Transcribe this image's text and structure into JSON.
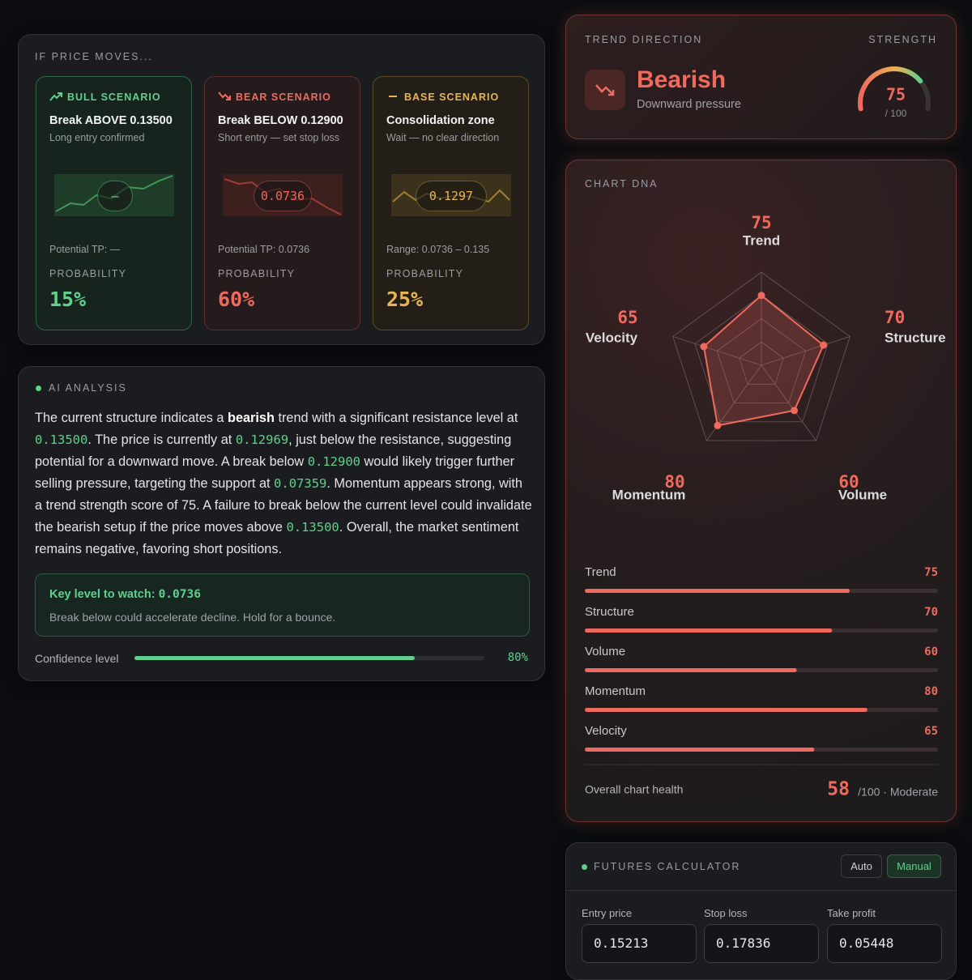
{
  "scenarios": {
    "title": "IF PRICE MOVES...",
    "cards": [
      {
        "label": "BULL SCENARIO",
        "title": "Break ABOVE 0.13500",
        "subtitle": "Long entry confirmed",
        "pill": "–",
        "note": "Potential TP: —",
        "prob_label": "PROBABILITY",
        "prob": "15%"
      },
      {
        "label": "BEAR SCENARIO",
        "title": "Break BELOW 0.12900",
        "subtitle": "Short entry — set stop loss",
        "pill": "0.0736",
        "note": "Potential TP: 0.0736",
        "prob_label": "PROBABILITY",
        "prob": "60%"
      },
      {
        "label": "BASE SCENARIO",
        "title": "Consolidation zone",
        "subtitle": "Wait — no clear direction",
        "pill": "0.1297",
        "note": "Range: 0.0736 – 0.135",
        "prob_label": "PROBABILITY",
        "prob": "25%"
      }
    ]
  },
  "analysis": {
    "title": "AI ANALYSIS",
    "paragraph": [
      "The current structure indicates a ",
      {
        "bold": "bearish"
      },
      " trend with a significant resistance level at ",
      {
        "code": "0.13500"
      },
      ". The price is currently at ",
      {
        "code": "0.12969"
      },
      ", just below the resistance, suggesting potential for a downward move. A break below ",
      {
        "code": "0.12900"
      },
      " would likely trigger further selling pressure, targeting the support at ",
      {
        "code": "0.07359"
      },
      ". Momentum appears strong, with a trend strength score of 75. A failure to break below the current level could invalidate the bearish setup if the price moves above ",
      {
        "code": "0.13500"
      },
      ". Overall, the market sentiment remains negative, favoring short positions."
    ],
    "key_level": {
      "label": "Key level to watch: ",
      "value": "0.0736",
      "text": "Break below could accelerate decline. Hold for a bounce."
    },
    "confidence": {
      "label": "Confidence level",
      "value": 80,
      "value_label": "80%",
      "range": [
        0,
        100
      ]
    }
  },
  "trend": {
    "title": "TREND DIRECTION",
    "direction": "Bearish",
    "subtitle": "Downward pressure",
    "strength_label": "STRENGTH",
    "strength": 75,
    "strength_max": "/ 100",
    "range": [
      0,
      100
    ]
  },
  "dna": {
    "title": "CHART DNA",
    "range": [
      0,
      100
    ],
    "axes": [
      {
        "label": "Trend",
        "value": 75
      },
      {
        "label": "Structure",
        "value": 70
      },
      {
        "label": "Volume",
        "value": 60
      },
      {
        "label": "Momentum",
        "value": 80
      },
      {
        "label": "Velocity",
        "value": 65
      }
    ],
    "health_label": "Overall chart health",
    "health": "58",
    "health_suffix": "/100 · Moderate"
  },
  "calculator": {
    "title": "FUTURES CALCULATOR",
    "modes": [
      "Auto",
      "Manual"
    ],
    "fields": [
      {
        "label": "Entry price",
        "value": "0.15213"
      },
      {
        "label": "Stop loss",
        "value": "0.17836"
      },
      {
        "label": "Take profit",
        "value": "0.05448"
      }
    ]
  }
}
